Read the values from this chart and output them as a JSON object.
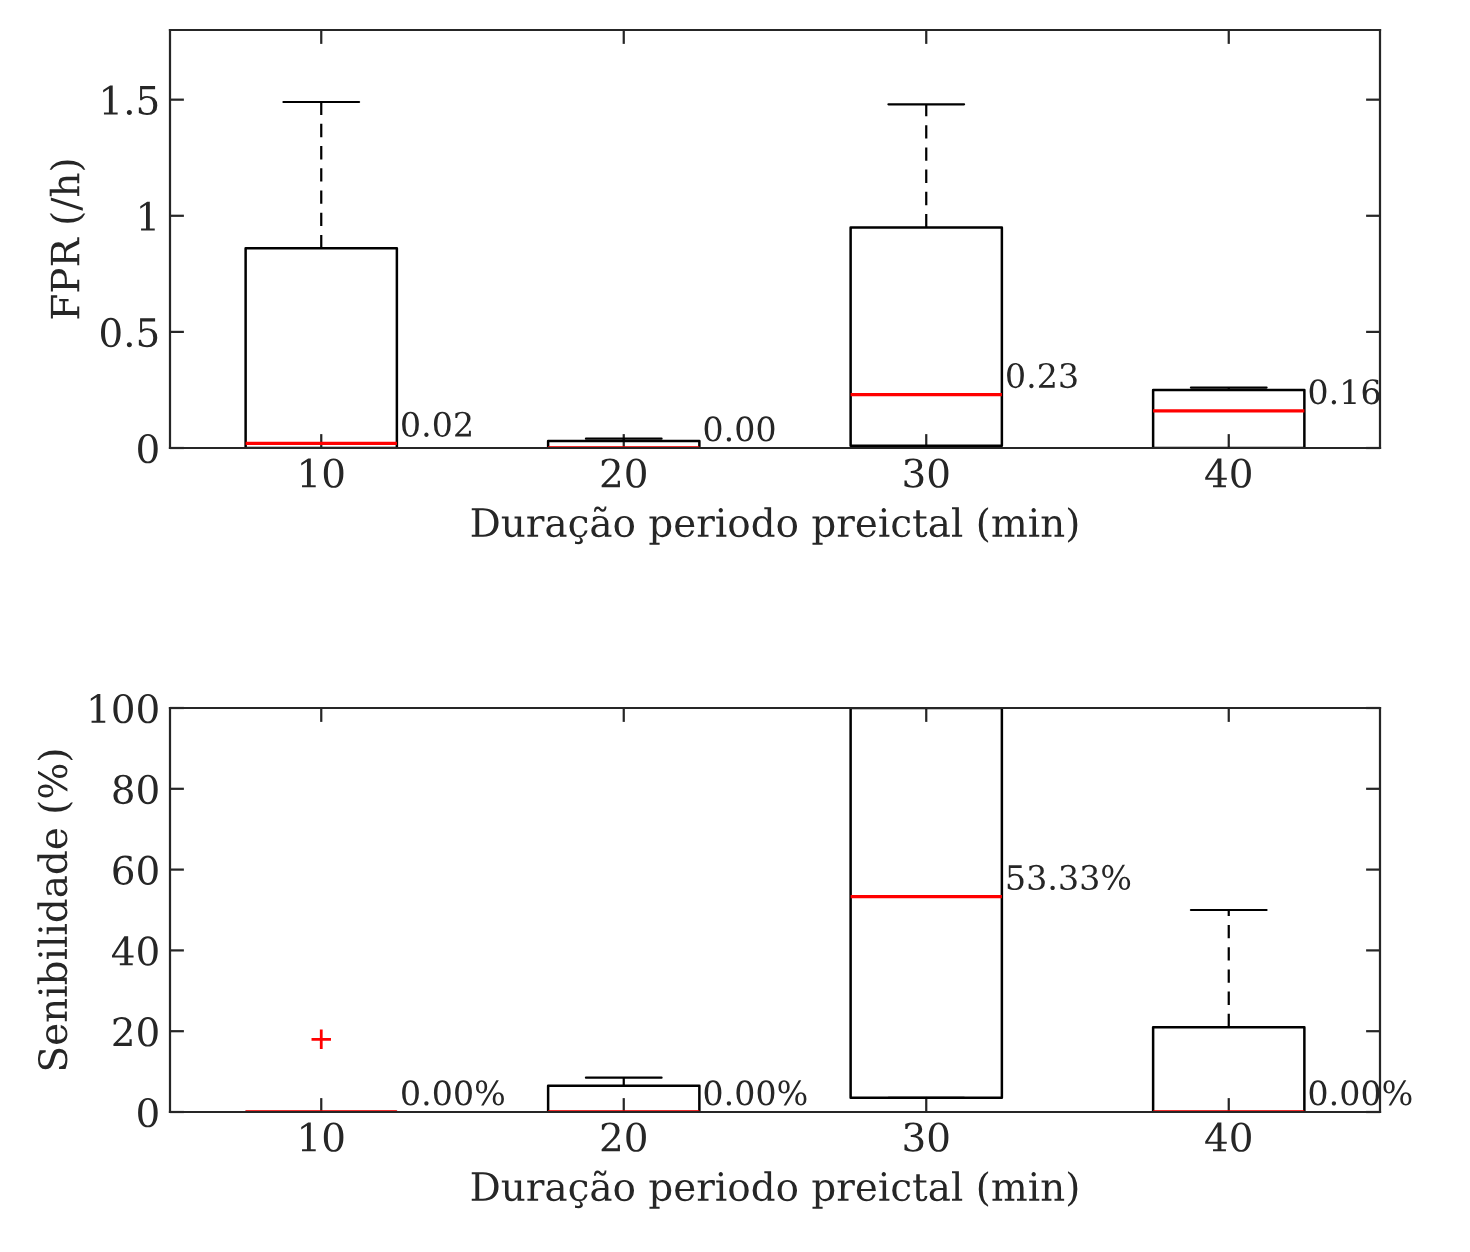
{
  "chart_data": [
    {
      "type": "box",
      "xlabel": "Duração periodo preictal (min)",
      "ylabel": "FPR (/h)",
      "categories": [
        "10",
        "20",
        "30",
        "40"
      ],
      "series": [
        {
          "color": "#000000",
          "boxes": [
            {
              "low": 0,
              "q1": 0,
              "median": 0.02,
              "q3": 0.86,
              "high": 1.49
            },
            {
              "low": 0,
              "q1": 0,
              "median": 0,
              "q3": 0.03,
              "high": 0.04
            },
            {
              "low": 0,
              "q1": 0.01,
              "median": 0.23,
              "q3": 0.95,
              "high": 1.48
            },
            {
              "low": 0,
              "q1": 0,
              "median": 0.16,
              "q3": 0.25,
              "high": 0.26
            }
          ]
        }
      ],
      "ylim": [
        0,
        1.8
      ],
      "yticks": [
        0,
        0.5,
        1,
        1.5
      ],
      "line_style": "dashed",
      "marker": "cross",
      "grid": false,
      "annotations": [
        {
          "text": "0.02",
          "x": "10",
          "y": 0.02
        },
        {
          "text": "0.00",
          "x": "20",
          "y": 0
        },
        {
          "text": "0.23",
          "x": "30",
          "y": 0.23
        },
        {
          "text": "0.16",
          "x": "40",
          "y": 0.16
        }
      ]
    },
    {
      "type": "box",
      "xlabel": "Duração periodo preictal (min)",
      "ylabel": "Senibilidade (%)",
      "categories": [
        "10",
        "20",
        "30",
        "40"
      ],
      "series": [
        {
          "color": "#000000",
          "boxes": [
            {
              "low": 0,
              "q1": 0,
              "median": 0,
              "q3": 0,
              "high": 0,
              "outliers": [
                18
              ]
            },
            {
              "low": 0,
              "q1": 0,
              "median": 0,
              "q3": 6.5,
              "high": 8.5
            },
            {
              "low": 3.5,
              "q1": 3.5,
              "median": 53.33,
              "q3": 100,
              "high": 100
            },
            {
              "low": 0,
              "q1": 0,
              "median": 0,
              "q3": 21,
              "high": 50
            }
          ]
        }
      ],
      "ylim": [
        0,
        100
      ],
      "yticks": [
        0,
        20,
        40,
        60,
        80,
        100
      ],
      "line_style": "dashed",
      "marker": "cross",
      "grid": false,
      "annotations": [
        {
          "text": "0.00%",
          "x": "10",
          "y": 0
        },
        {
          "text": "0.00%",
          "x": "20",
          "y": 0
        },
        {
          "text": "53.33%",
          "x": "30",
          "y": 53.33
        },
        {
          "text": "0.00%",
          "x": "40",
          "y": 0
        }
      ]
    }
  ]
}
